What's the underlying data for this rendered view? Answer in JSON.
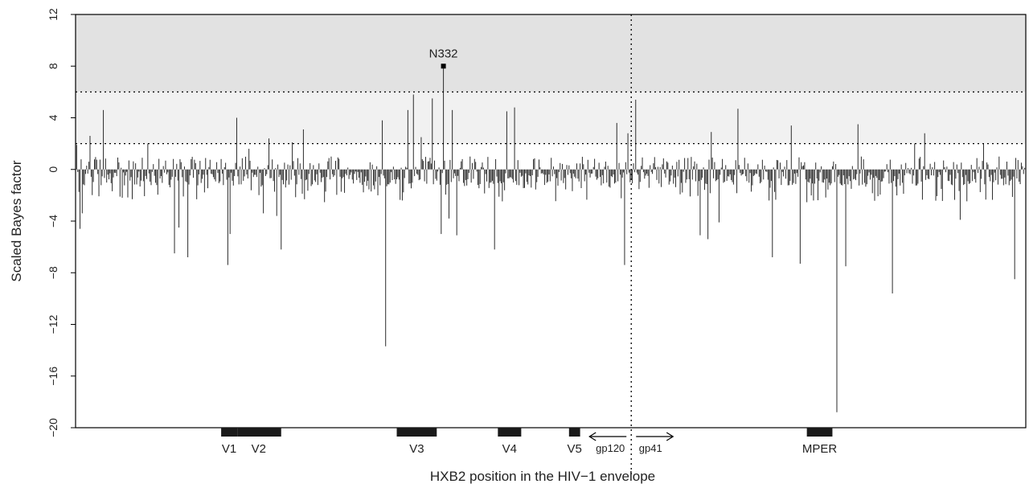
{
  "chart_data": {
    "type": "bar",
    "title": "",
    "xlabel": "HXB2 position in the HIV−1 envelope",
    "ylabel": "Scaled Bayes factor",
    "ylim": [
      -20,
      12
    ],
    "yticks": [
      -20,
      -16,
      -12,
      -8,
      -4,
      0,
      4,
      8,
      12
    ],
    "grid": false,
    "x_range": [
      1,
      856
    ],
    "shaded_bands": [
      {
        "from": 6,
        "to": 12,
        "color": "#e2e2e2"
      },
      {
        "from": 2,
        "to": 6,
        "color": "#f1f1f1"
      }
    ],
    "threshold_lines": [
      2,
      6
    ],
    "boundary_position": 501,
    "boundary_labels": [
      "gp120",
      "gp41"
    ],
    "highlighted_point": {
      "label": "N332",
      "x": 332,
      "y": 8
    },
    "regions": [
      {
        "label": "V1",
        "start": 132,
        "end": 146
      },
      {
        "label": "V2",
        "start": 147,
        "end": 185
      },
      {
        "label": "V3",
        "start": 290,
        "end": 325
      },
      {
        "label": "V4",
        "start": 381,
        "end": 401
      },
      {
        "label": "V5",
        "start": 445,
        "end": 454
      },
      {
        "label": "MPER",
        "start": 659,
        "end": 681
      }
    ],
    "notable_values": [
      {
        "x": 2,
        "y": 1.9
      },
      {
        "x": 5,
        "y": -4.6
      },
      {
        "x": 7,
        "y": -3.4
      },
      {
        "x": 14,
        "y": 2.6
      },
      {
        "x": 26,
        "y": 4.6
      },
      {
        "x": 66,
        "y": 2.0
      },
      {
        "x": 90,
        "y": -6.5
      },
      {
        "x": 94,
        "y": -4.5
      },
      {
        "x": 102,
        "y": -6.8
      },
      {
        "x": 138,
        "y": -7.4
      },
      {
        "x": 140,
        "y": -5.0
      },
      {
        "x": 146,
        "y": 4.0
      },
      {
        "x": 157,
        "y": 1.6
      },
      {
        "x": 170,
        "y": -3.4
      },
      {
        "x": 175,
        "y": 2.4
      },
      {
        "x": 182,
        "y": -3.6
      },
      {
        "x": 186,
        "y": -6.2
      },
      {
        "x": 196,
        "y": 2.1
      },
      {
        "x": 206,
        "y": 3.1
      },
      {
        "x": 277,
        "y": 3.8
      },
      {
        "x": 280,
        "y": -13.7
      },
      {
        "x": 300,
        "y": 4.6
      },
      {
        "x": 305,
        "y": 5.8
      },
      {
        "x": 312,
        "y": 2.5
      },
      {
        "x": 322,
        "y": 5.5
      },
      {
        "x": 330,
        "y": -5.0
      },
      {
        "x": 332,
        "y": 8.0
      },
      {
        "x": 337,
        "y": -3.8
      },
      {
        "x": 340,
        "y": 4.6
      },
      {
        "x": 344,
        "y": -5.1
      },
      {
        "x": 378,
        "y": -6.2
      },
      {
        "x": 389,
        "y": 4.5
      },
      {
        "x": 396,
        "y": 4.8
      },
      {
        "x": 488,
        "y": 3.6
      },
      {
        "x": 495,
        "y": -7.4
      },
      {
        "x": 498,
        "y": 2.8
      },
      {
        "x": 505,
        "y": 5.4
      },
      {
        "x": 563,
        "y": -5.1
      },
      {
        "x": 570,
        "y": -5.4
      },
      {
        "x": 573,
        "y": 2.9
      },
      {
        "x": 580,
        "y": -4.1
      },
      {
        "x": 597,
        "y": 4.7
      },
      {
        "x": 628,
        "y": -6.8
      },
      {
        "x": 645,
        "y": 3.4
      },
      {
        "x": 653,
        "y": -7.3
      },
      {
        "x": 686,
        "y": -18.8
      },
      {
        "x": 694,
        "y": -7.5
      },
      {
        "x": 705,
        "y": 3.5
      },
      {
        "x": 736,
        "y": -9.6
      },
      {
        "x": 756,
        "y": 2.0
      },
      {
        "x": 765,
        "y": 2.8
      },
      {
        "x": 797,
        "y": -3.9
      },
      {
        "x": 818,
        "y": 2.0
      },
      {
        "x": 846,
        "y": -8.5
      }
    ]
  }
}
